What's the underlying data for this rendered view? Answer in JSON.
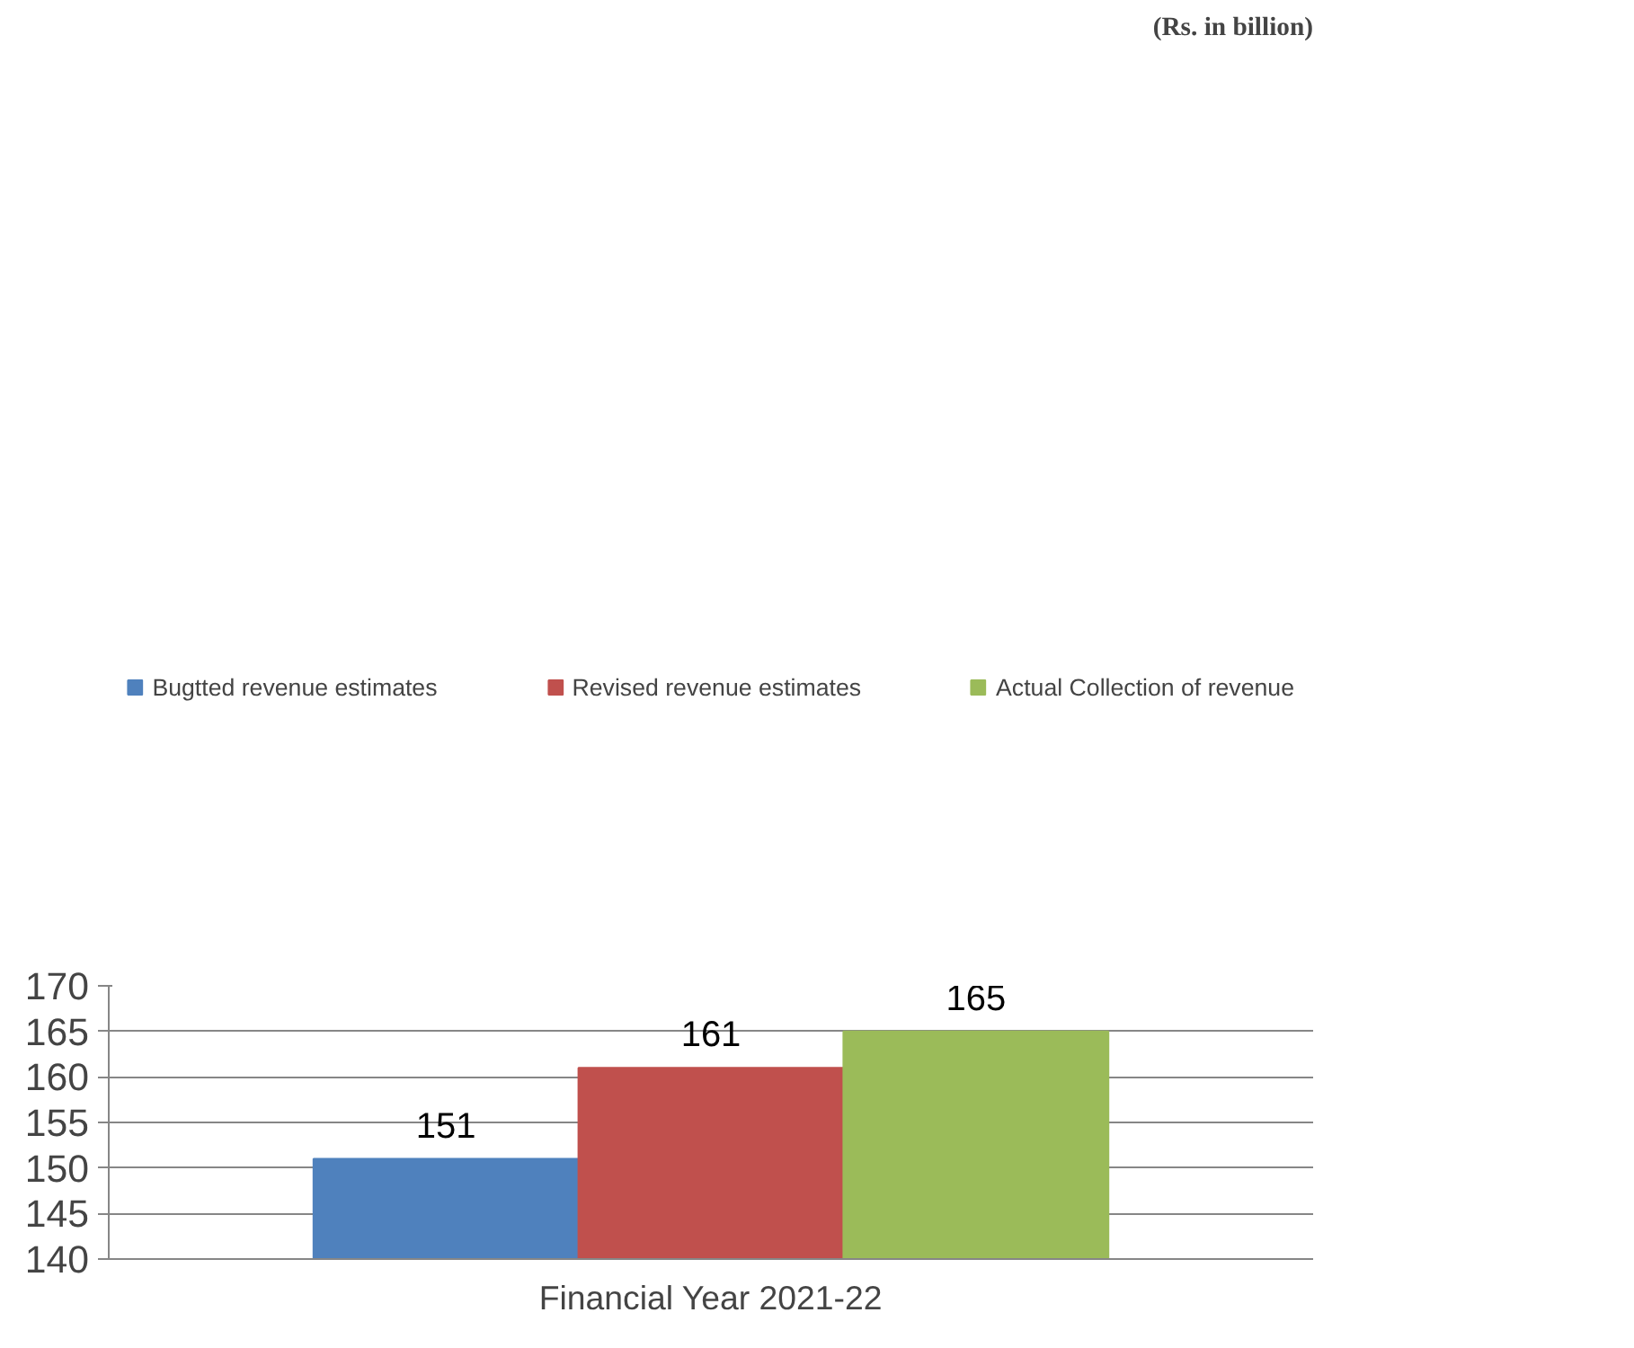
{
  "chart_data": {
    "type": "bar",
    "categories": [
      "Financial Year 2021-22"
    ],
    "series": [
      {
        "name": "Bugtted revenue estimates",
        "color": "#4f81bd",
        "values": [
          151
        ]
      },
      {
        "name": "Revised revenue estimates",
        "color": "#c0504d",
        "values": [
          161
        ]
      },
      {
        "name": "Actual Collection of revenue",
        "color": "#9bbb59",
        "values": [
          165
        ]
      }
    ],
    "ylim": [
      140,
      170
    ],
    "yticks": [
      140,
      145,
      150,
      155,
      160,
      165,
      170
    ],
    "grid": "y",
    "legend": "top",
    "data_labels": true,
    "annotations": [
      "(Rs. in billion)"
    ]
  }
}
